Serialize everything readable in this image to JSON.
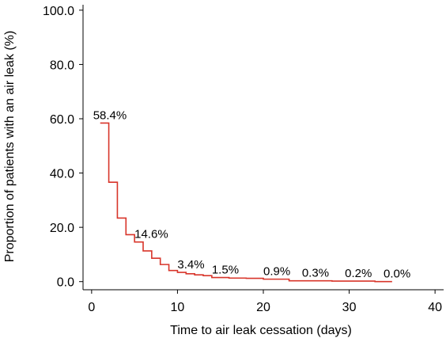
{
  "chart_data": {
    "type": "line",
    "title": "",
    "xlabel": "Time to air leak cessation (days)",
    "ylabel": "Proportion of patients with an air leak (%)",
    "xlim": [
      -1,
      41
    ],
    "ylim": [
      -3,
      102
    ],
    "x_ticks": [
      0,
      10,
      20,
      30,
      40
    ],
    "x_tick_labels": [
      "0",
      "10",
      "20",
      "30",
      "40"
    ],
    "y_ticks": [
      0,
      20,
      40,
      60,
      80,
      100
    ],
    "y_tick_labels": [
      "0.0",
      "20.0",
      "40.0",
      "60.0",
      "80.0",
      "100.0"
    ],
    "grid": false,
    "series": [
      {
        "step": true,
        "color": "#d8352a",
        "x": [
          1,
          2,
          3,
          4,
          5,
          6,
          7,
          8,
          9,
          10,
          11,
          12,
          13,
          14,
          15,
          16,
          18,
          20,
          21,
          23,
          24,
          26,
          28,
          30,
          33,
          35
        ],
        "y": [
          58.4,
          36.6,
          23.4,
          17.3,
          14.6,
          11.3,
          8.6,
          6.3,
          4.1,
          3.4,
          2.9,
          2.5,
          2.2,
          1.5,
          1.5,
          1.3,
          1.2,
          0.9,
          0.9,
          0.3,
          0.3,
          0.3,
          0.2,
          0.2,
          0.0,
          0.0
        ]
      }
    ],
    "annotations": [
      {
        "text": "58.4%",
        "x": 1,
        "y": 58.4
      },
      {
        "text": "14.6%",
        "x": 5,
        "y": 14.6
      },
      {
        "text": "3.4%",
        "x": 10,
        "y": 3.4
      },
      {
        "text": "1.5%",
        "x": 14,
        "y": 1.5
      },
      {
        "text": "0.9%",
        "x": 20,
        "y": 0.9
      },
      {
        "text": "0.3%",
        "x": 24.5,
        "y": 0.3
      },
      {
        "text": "0.2%",
        "x": 29.5,
        "y": 0.2
      },
      {
        "text": "0.0%",
        "x": 34,
        "y": 0.0
      }
    ]
  }
}
